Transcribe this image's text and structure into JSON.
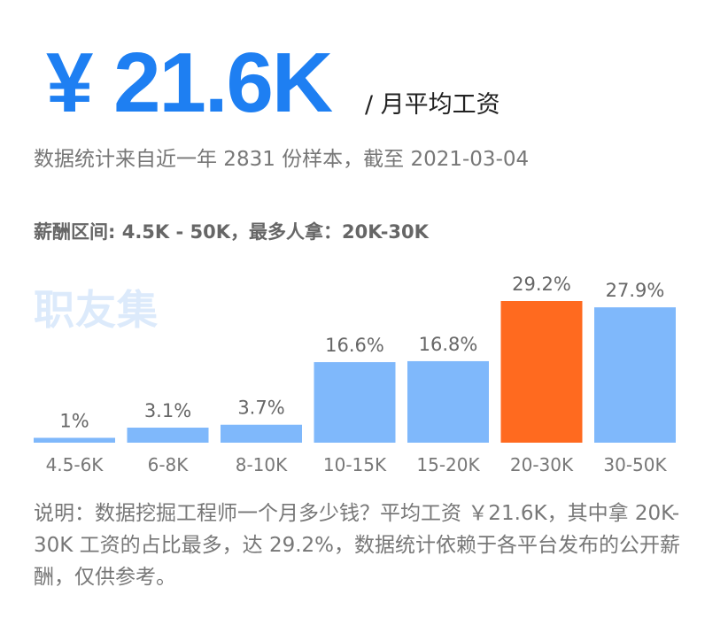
{
  "header": {
    "value": "¥ 21.6K",
    "unit": "/ 月平均工资"
  },
  "subtitle": "数据统计来自近一年 2831 份样本，截至 2021-03-04",
  "range_text": "薪酬区间: 4.5K - 50K，最多人拿：20K-30K",
  "watermark": "职友集",
  "note": "说明：数据挖掘工程师一个月多少钱？平均工资 ￥21.6K，其中拿 20K-30K 工资的占比最多，达 29.2%，数据统计依赖于各平台发布的公开薪酬，仅供参考。",
  "colors": {
    "accent": "#1e7ff2",
    "bar": "#7fb8fb",
    "highlight": "#ff6a1f"
  },
  "chart_data": {
    "type": "bar",
    "categories": [
      "4.5-6K",
      "6-8K",
      "8-10K",
      "10-15K",
      "15-20K",
      "20-30K",
      "30-50K"
    ],
    "values": [
      1,
      3.1,
      3.7,
      16.6,
      16.8,
      29.2,
      27.9
    ],
    "value_labels": [
      "1%",
      "3.1%",
      "3.7%",
      "16.6%",
      "16.8%",
      "29.2%",
      "27.9%"
    ],
    "highlight_index": 5,
    "ylim": [
      0,
      29.2
    ],
    "grid": false,
    "title": "",
    "xlabel": "",
    "ylabel": ""
  }
}
